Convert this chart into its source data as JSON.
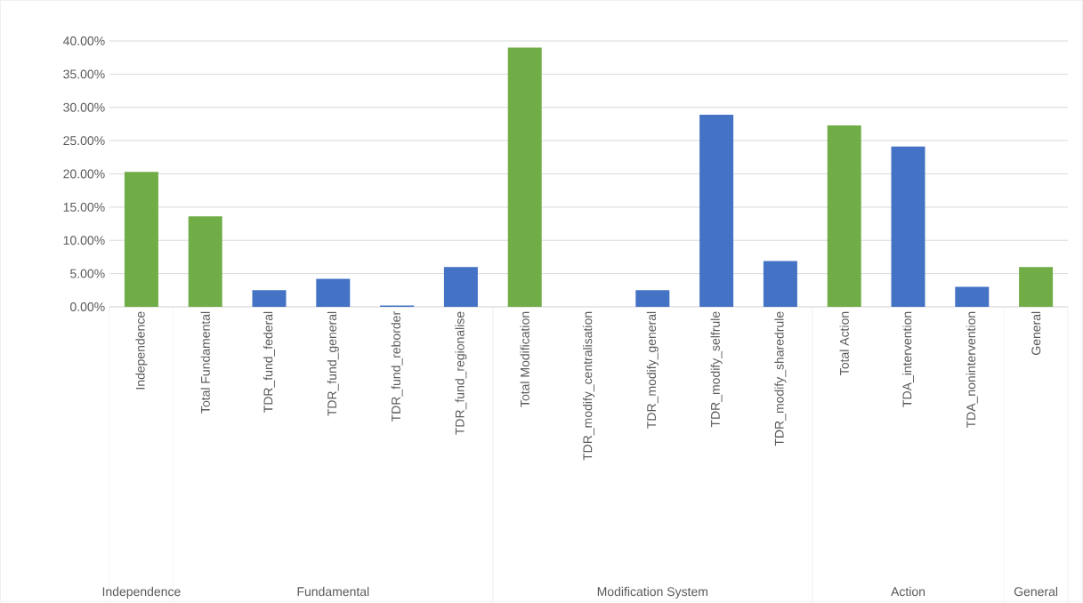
{
  "chart_data": {
    "type": "bar",
    "categories": [
      "Independence",
      "Total Fundamental",
      "TDR_fund_federal",
      "TDR_fund_general",
      "TDR_fund_reborder",
      "TDR_fund_regionalise",
      "Total Modification",
      "TDR_modify_centralisation",
      "TDR_modify_general",
      "TDR_modify_selfrule",
      "TDR_modify_sharedrule",
      "Total Action",
      "TDA_intervention",
      "TDA_nonintervention",
      "General"
    ],
    "values": [
      20.3,
      13.6,
      2.5,
      4.2,
      0.2,
      6.0,
      39.0,
      0,
      2.5,
      28.9,
      6.9,
      27.3,
      24.1,
      3.0,
      6.0
    ],
    "colors": [
      "#70ad47",
      "#70ad47",
      "#4472c4",
      "#4472c4",
      "#4472c4",
      "#4472c4",
      "#70ad47",
      "#4472c4",
      "#4472c4",
      "#4472c4",
      "#4472c4",
      "#70ad47",
      "#4472c4",
      "#4472c4",
      "#70ad47"
    ],
    "ylim": [
      0,
      40
    ],
    "yticks": [
      {
        "value": 0,
        "label": "0.00%"
      },
      {
        "value": 5,
        "label": "5.00%"
      },
      {
        "value": 10,
        "label": "10.00%"
      },
      {
        "value": 15,
        "label": "15.00%"
      },
      {
        "value": 20,
        "label": "20.00%"
      },
      {
        "value": 25,
        "label": "25.00%"
      },
      {
        "value": 30,
        "label": "30.00%"
      },
      {
        "value": 35,
        "label": "35.00%"
      },
      {
        "value": 40,
        "label": "40.00%"
      }
    ],
    "grid": "y",
    "annotations": [
      "Independence",
      "Fundamental",
      "Modification System",
      "Action",
      "General"
    ]
  }
}
